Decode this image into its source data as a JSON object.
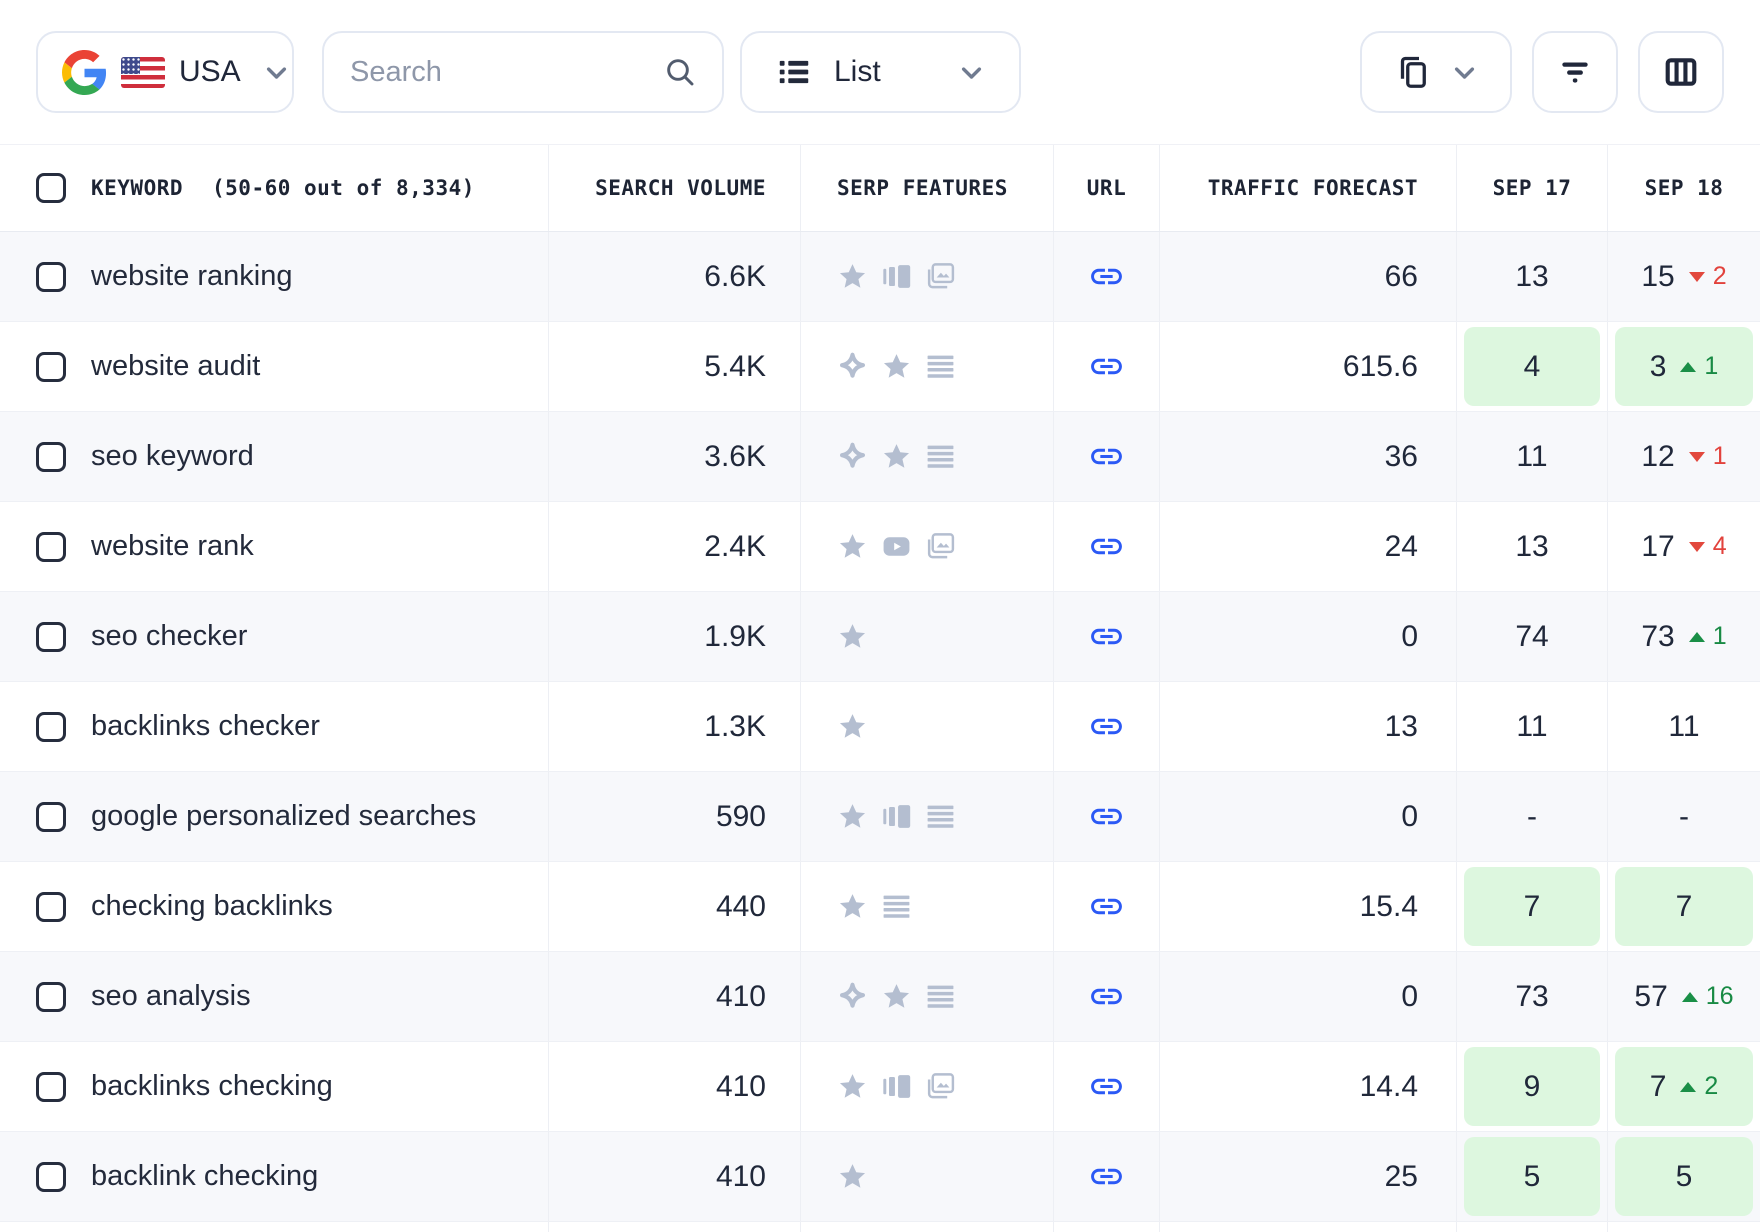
{
  "toolbar": {
    "country": {
      "label": "USA"
    },
    "search": {
      "placeholder": "Search"
    },
    "view": {
      "label": "List"
    }
  },
  "table": {
    "header": {
      "keyword": "KEYWORD",
      "keyword_count": "(50-60 out of 8,334)",
      "search_volume": "SEARCH VOLUME",
      "serp_features": "SERP FEATURES",
      "url": "URL",
      "traffic_forecast": "TRAFFIC FORECAST",
      "sep17": "SEP 17",
      "sep18": "SEP 18"
    },
    "rows": [
      {
        "keyword": "website ranking",
        "search_volume": "6.6K",
        "serp_features": [
          "star",
          "carousel",
          "image-pack"
        ],
        "traffic_forecast": "66",
        "sep17": {
          "value": "13"
        },
        "sep18": {
          "value": "15",
          "delta": "2",
          "direction": "down"
        }
      },
      {
        "keyword": "website audit",
        "search_volume": "5.4K",
        "serp_features": [
          "sparkle",
          "star",
          "snippet"
        ],
        "traffic_forecast": "615.6",
        "sep17": {
          "value": "4",
          "highlight": true
        },
        "sep18": {
          "value": "3",
          "delta": "1",
          "direction": "up",
          "highlight": true
        }
      },
      {
        "keyword": "seo keyword",
        "search_volume": "3.6K",
        "serp_features": [
          "sparkle",
          "star",
          "snippet"
        ],
        "traffic_forecast": "36",
        "sep17": {
          "value": "11"
        },
        "sep18": {
          "value": "12",
          "delta": "1",
          "direction": "down"
        }
      },
      {
        "keyword": "website rank",
        "search_volume": "2.4K",
        "serp_features": [
          "star",
          "video",
          "image-pack"
        ],
        "traffic_forecast": "24",
        "sep17": {
          "value": "13"
        },
        "sep18": {
          "value": "17",
          "delta": "4",
          "direction": "down"
        }
      },
      {
        "keyword": "seo checker",
        "search_volume": "1.9K",
        "serp_features": [
          "star"
        ],
        "traffic_forecast": "0",
        "sep17": {
          "value": "74"
        },
        "sep18": {
          "value": "73",
          "delta": "1",
          "direction": "up"
        }
      },
      {
        "keyword": "backlinks checker",
        "search_volume": "1.3K",
        "serp_features": [
          "star"
        ],
        "traffic_forecast": "13",
        "sep17": {
          "value": "11"
        },
        "sep18": {
          "value": "11"
        }
      },
      {
        "keyword": "google personalized searches",
        "search_volume": "590",
        "serp_features": [
          "star",
          "carousel",
          "snippet"
        ],
        "traffic_forecast": "0",
        "sep17": {
          "value": "-"
        },
        "sep18": {
          "value": "-"
        }
      },
      {
        "keyword": "checking backlinks",
        "search_volume": "440",
        "serp_features": [
          "star",
          "snippet"
        ],
        "traffic_forecast": "15.4",
        "sep17": {
          "value": "7",
          "highlight": true
        },
        "sep18": {
          "value": "7",
          "highlight": true
        }
      },
      {
        "keyword": "seo analysis",
        "search_volume": "410",
        "serp_features": [
          "sparkle",
          "star",
          "snippet"
        ],
        "traffic_forecast": "0",
        "sep17": {
          "value": "73"
        },
        "sep18": {
          "value": "57",
          "delta": "16",
          "direction": "up"
        }
      },
      {
        "keyword": "backlinks checking",
        "search_volume": "410",
        "serp_features": [
          "star",
          "carousel",
          "image-pack"
        ],
        "traffic_forecast": "14.4",
        "sep17": {
          "value": "9",
          "highlight": true
        },
        "sep18": {
          "value": "7",
          "delta": "2",
          "direction": "up",
          "highlight": true
        }
      },
      {
        "keyword": "backlink checking",
        "search_volume": "410",
        "serp_features": [
          "star"
        ],
        "traffic_forecast": "25",
        "sep17": {
          "value": "5",
          "highlight": true
        },
        "sep18": {
          "value": "5",
          "highlight": true
        }
      }
    ]
  },
  "colors": {
    "link_blue": "#2b59f5",
    "positive_green": "#188a44",
    "negative_red": "#e2423c",
    "highlight_green": "#ddf7df",
    "serp_icon_gray": "#b4bed0"
  }
}
